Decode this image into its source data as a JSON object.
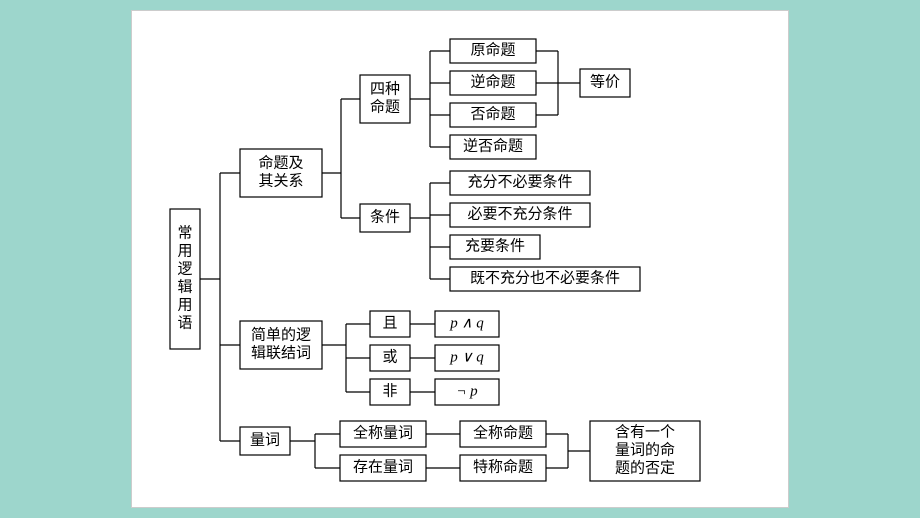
{
  "background_color": "#9dd6cc",
  "card_background": "#ffffff",
  "stroke_color": "#000000",
  "root": {
    "label": "常用逻辑用语"
  },
  "branch1": {
    "label": "命题及\n其关系",
    "sub1": {
      "label": "四种\n命题",
      "children": [
        "原命题",
        "逆命题",
        "否命题",
        "逆否命题"
      ],
      "right": "等价"
    },
    "sub2": {
      "label": "条件",
      "children": [
        "充分不必要条件",
        "必要不充分条件",
        "充要条件",
        "既不充分也不必要条件"
      ]
    }
  },
  "branch2": {
    "label": "简单的逻\n辑联结词",
    "rows": [
      {
        "op": "且",
        "expr": "p ∧ q"
      },
      {
        "op": "或",
        "expr": "p ∨ q"
      },
      {
        "op": "非",
        "expr": "¬ p"
      }
    ]
  },
  "branch3": {
    "label": "量词",
    "rows": [
      {
        "a": "全称量词",
        "b": "全称命题"
      },
      {
        "a": "存在量词",
        "b": "特称命题"
      }
    ],
    "right": "含有一个\n量词的命\n题的否定"
  },
  "font_size": 15,
  "diagram_width": 600,
  "diagram_height": 460
}
